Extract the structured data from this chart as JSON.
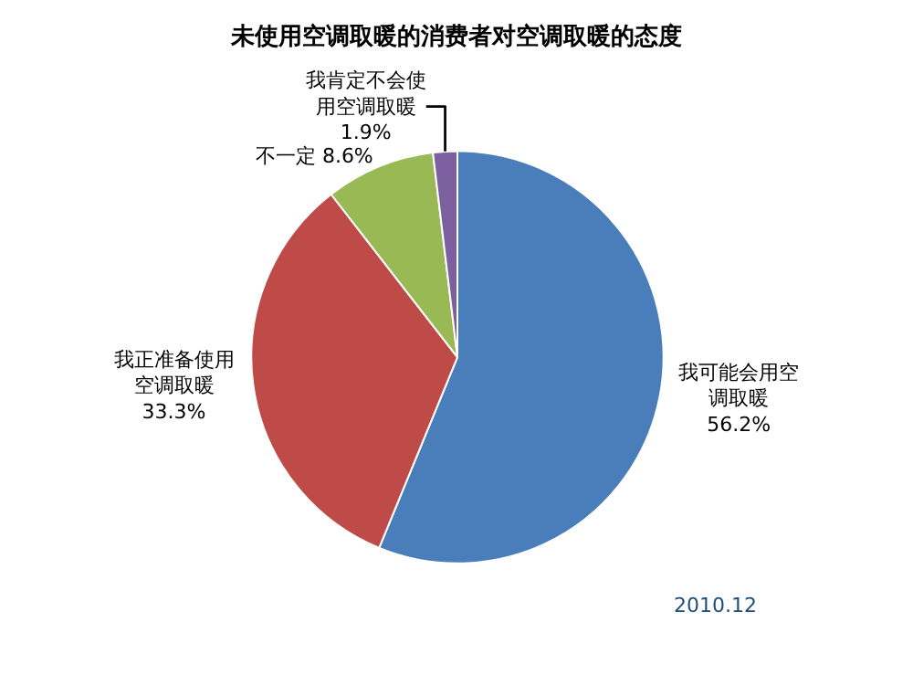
{
  "chart_data": {
    "type": "pie",
    "title": "未使用空调取暖的消费者对空调取暖的态度",
    "categories": [
      "我可能会用空调取暖",
      "我正准备使用空调取暖",
      "不一定",
      "我肯定不会使用空调取暖"
    ],
    "values": [
      56.2,
      33.3,
      8.6,
      1.9
    ],
    "value_labels": [
      "56.2%",
      "33.3%",
      "8.6%",
      "1.9%"
    ],
    "colors": [
      "#4a7ebb",
      "#be4b48",
      "#98b954",
      "#7d60a0"
    ],
    "annotations": [
      "2010.12"
    ],
    "legend": false
  }
}
